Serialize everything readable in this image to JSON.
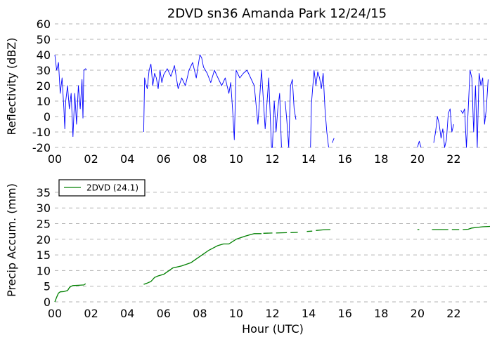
{
  "title": "2DVD sn36 Amanda Park 12/24/15",
  "chart_data": [
    {
      "type": "line",
      "ylabel": "Reflectivity (dBZ)",
      "xlabel": "",
      "xlim": [
        0,
        24
      ],
      "ylim": [
        -20,
        60
      ],
      "x_ticks": [
        0,
        2,
        4,
        6,
        8,
        10,
        12,
        14,
        16,
        18,
        20,
        22
      ],
      "x_tick_labels": [
        "00",
        "02",
        "04",
        "06",
        "08",
        "10",
        "12",
        "14",
        "16",
        "18",
        "20",
        "22"
      ],
      "y_ticks": [
        -20,
        -10,
        0,
        10,
        20,
        30,
        40,
        50,
        60
      ],
      "grid": "horizontal-dashed",
      "color": "#0000ff",
      "segments": [
        {
          "x": [
            0.0,
            0.1,
            0.2,
            0.3,
            0.4,
            0.5,
            0.55,
            0.6,
            0.7,
            0.8,
            0.9,
            1.0,
            1.1,
            1.2,
            1.3,
            1.4,
            1.5,
            1.55,
            1.6,
            1.7,
            1.75
          ],
          "y": [
            40,
            30,
            35,
            15,
            25,
            5,
            -8,
            10,
            20,
            5,
            15,
            -13,
            15,
            -5,
            20,
            5,
            24,
            -1,
            30,
            31,
            30
          ]
        },
        {
          "x": [
            4.9,
            4.95,
            5.0,
            5.1,
            5.2,
            5.3,
            5.4,
            5.5,
            5.6,
            5.7,
            5.8,
            5.9,
            6.0,
            6.2,
            6.4,
            6.6,
            6.8,
            7.0,
            7.2,
            7.4,
            7.6,
            7.8,
            8.0,
            8.1,
            8.2,
            8.4,
            8.6,
            8.8,
            9.0,
            9.2,
            9.4,
            9.6,
            9.7,
            9.8,
            9.9,
            10.0,
            10.2,
            10.4,
            10.6,
            10.8,
            11.0,
            11.2,
            11.4,
            11.6,
            11.8,
            11.95,
            12.0,
            12.1,
            12.2,
            12.3,
            12.4,
            12.5
          ],
          "y": [
            -10,
            25,
            22,
            18,
            30,
            34,
            20,
            28,
            25,
            18,
            30,
            22,
            27,
            31,
            26,
            33,
            18,
            25,
            20,
            30,
            35,
            25,
            40,
            38,
            32,
            28,
            22,
            30,
            25,
            20,
            25,
            15,
            22,
            5,
            -15,
            30,
            25,
            28,
            30,
            25,
            20,
            -5,
            30,
            -8,
            25,
            -20,
            -20,
            10,
            -10,
            5,
            15,
            -20
          ]
        },
        {
          "x": [
            12.7,
            12.8,
            12.9,
            13.0,
            13.1,
            13.2,
            13.3
          ],
          "y": [
            10,
            -3,
            -20,
            20,
            24,
            5,
            -2
          ]
        },
        {
          "x": [
            14.1,
            14.15,
            14.2,
            14.3,
            14.4,
            14.5,
            14.6,
            14.7,
            14.8,
            14.9,
            15.0,
            15.1
          ],
          "y": [
            -20,
            8,
            15,
            30,
            20,
            29,
            25,
            18,
            28,
            5,
            -10,
            -20
          ]
        },
        {
          "x": [
            15.3,
            15.4
          ],
          "y": [
            -17,
            -14
          ]
        },
        {
          "x": [
            20.0,
            20.1,
            20.2
          ],
          "y": [
            -20,
            -16,
            -20
          ]
        },
        {
          "x": [
            20.9,
            21.0,
            21.1,
            21.2,
            21.3,
            21.4,
            21.5,
            21.6,
            21.7,
            21.8,
            21.9,
            22.0
          ],
          "y": [
            -17,
            -10,
            0,
            -5,
            -14,
            -8,
            -20,
            -15,
            2,
            5,
            -10,
            -5
          ]
        },
        {
          "x": [
            22.4,
            22.5,
            22.6,
            22.7,
            22.8,
            22.9,
            23.0,
            23.1,
            23.2,
            23.3,
            23.4,
            23.5,
            23.6,
            23.7,
            23.8,
            23.9
          ],
          "y": [
            4,
            2,
            5,
            -20,
            5,
            30,
            25,
            -10,
            20,
            -20,
            28,
            20,
            25,
            -5,
            5,
            24
          ]
        }
      ]
    },
    {
      "type": "line",
      "ylabel": "Precip Accum. (mm)",
      "xlabel": "Hour (UTC)",
      "xlim": [
        0,
        24
      ],
      "ylim": [
        0,
        37
      ],
      "x_ticks": [
        0,
        2,
        4,
        6,
        8,
        10,
        12,
        14,
        16,
        18,
        20,
        22
      ],
      "x_tick_labels": [
        "00",
        "02",
        "04",
        "06",
        "08",
        "10",
        "12",
        "14",
        "16",
        "18",
        "20",
        "22"
      ],
      "y_ticks": [
        0,
        5,
        10,
        15,
        20,
        25,
        30,
        35
      ],
      "grid": "horizontal-dashed",
      "legend": {
        "position": "top-left",
        "entries": [
          {
            "label": "2DVD (24.1)",
            "color": "#008000"
          }
        ]
      },
      "series": [
        {
          "name": "2DVD (24.1)",
          "segments": [
            {
              "x": [
                0.0,
                0.1,
                0.2,
                0.3,
                0.5,
                0.7,
                0.8,
                0.9,
                1.0,
                1.3,
                1.6,
                1.7
              ],
              "y": [
                0,
                1.5,
                2.8,
                3.2,
                3.3,
                3.6,
                4.5,
                5.0,
                5.2,
                5.3,
                5.4,
                5.8
              ]
            },
            {
              "x": [
                4.9,
                5.1,
                5.3,
                5.5,
                5.7,
                6.0,
                6.5,
                7.0,
                7.5,
                8.0,
                8.5,
                9.0,
                9.3,
                9.6,
                10.0,
                10.5,
                10.8,
                11.0,
                11.2,
                11.4
              ],
              "y": [
                5.6,
                6.0,
                6.5,
                7.8,
                8.3,
                8.8,
                10.8,
                11.5,
                12.5,
                14.5,
                16.5,
                18.0,
                18.5,
                18.5,
                20.0,
                21.0,
                21.5,
                21.8,
                21.8,
                21.8
              ]
            },
            {
              "x": [
                11.5,
                12.0
              ],
              "y": [
                21.9,
                22.0
              ]
            },
            {
              "x": [
                12.2,
                12.8
              ],
              "y": [
                22.0,
                22.1
              ]
            },
            {
              "x": [
                13.0,
                13.4
              ],
              "y": [
                22.1,
                22.2
              ]
            },
            {
              "x": [
                13.9,
                14.2
              ],
              "y": [
                22.5,
                22.6
              ]
            },
            {
              "x": [
                14.4,
                14.8,
                15.2
              ],
              "y": [
                22.8,
                23.0,
                23.1
              ]
            },
            {
              "x": [
                20.0,
                20.1
              ],
              "y": [
                23.1,
                23.1
              ]
            },
            {
              "x": [
                20.8,
                21.7
              ],
              "y": [
                23.1,
                23.1
              ]
            },
            {
              "x": [
                21.9,
                22.3
              ],
              "y": [
                23.1,
                23.1
              ]
            },
            {
              "x": [
                22.5,
                22.8,
                23.0,
                23.3,
                23.6,
                24.0
              ],
              "y": [
                23.1,
                23.2,
                23.6,
                23.8,
                24.0,
                24.1
              ]
            }
          ]
        }
      ]
    }
  ]
}
